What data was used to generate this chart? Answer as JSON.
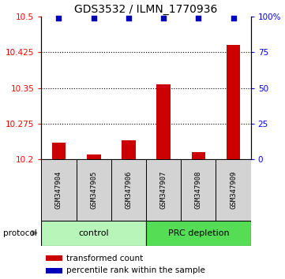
{
  "title": "GDS3532 / ILMN_1770936",
  "samples": [
    "GSM347904",
    "GSM347905",
    "GSM347906",
    "GSM347907",
    "GSM347908",
    "GSM347909"
  ],
  "transformed_counts": [
    10.235,
    10.21,
    10.24,
    10.357,
    10.215,
    10.44
  ],
  "percentile_ranks": [
    99,
    99,
    99,
    99,
    99,
    99
  ],
  "baseline": 10.2,
  "ylim_left": [
    10.2,
    10.5
  ],
  "ylim_right": [
    0,
    100
  ],
  "yticks_left": [
    10.2,
    10.275,
    10.35,
    10.425,
    10.5
  ],
  "yticks_right": [
    0,
    25,
    50,
    75,
    100
  ],
  "bar_color": "#cc0000",
  "dot_color": "#0000bb",
  "bg_color_samples": "#d3d3d3",
  "bg_color_control": "#b8f5b8",
  "bg_color_prc": "#55dd55",
  "title_fontsize": 10,
  "tick_fontsize": 7.5,
  "sample_fontsize": 6.5,
  "legend_fontsize": 7.5,
  "protocol_fontsize": 8,
  "n_control": 3,
  "n_prc": 3
}
